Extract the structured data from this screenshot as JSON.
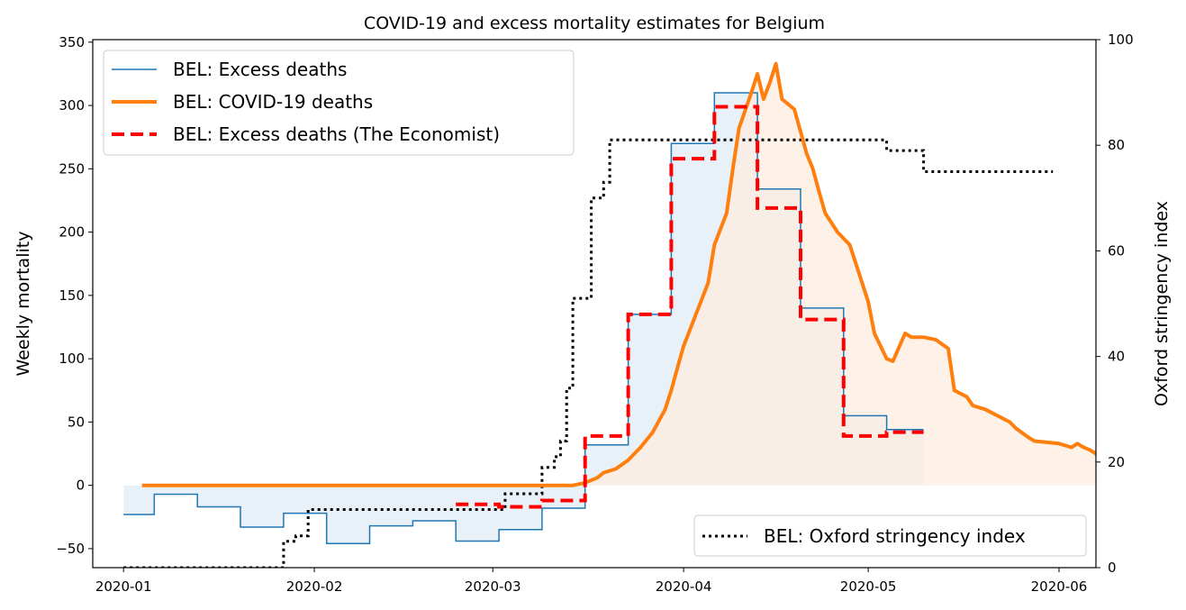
{
  "chart_data": {
    "type": "line",
    "title": "COVID-19 and excess mortality estimates for Belgium",
    "xlabel": "",
    "ylabel": "Weekly mortality",
    "y2label": "Oxford stringency index",
    "x_range": [
      "2019-12-27",
      "2020-06-07"
    ],
    "ylim": [
      -65,
      352
    ],
    "y2lim": [
      0,
      100
    ],
    "x_ticks": [
      "2020-01",
      "2020-02",
      "2020-03",
      "2020-04",
      "2020-05",
      "2020-06"
    ],
    "y_ticks": [
      -50,
      0,
      50,
      100,
      150,
      200,
      250,
      300,
      350
    ],
    "y2_ticks": [
      0,
      20,
      40,
      60,
      80,
      100
    ],
    "legend": {
      "placement": "upper-left",
      "placement_right": "lower-right"
    },
    "colors": {
      "excess": "#1f77b4",
      "excess_fill": "#e8f0f8",
      "covid": "#ff7f0e",
      "covid_fill": "#fdeee0",
      "overlap_fill": "#ebe5e0",
      "economist": "#ff0000",
      "oxford": "#000000"
    },
    "series": [
      {
        "name": "BEL: Excess deaths",
        "axis": "left",
        "style": "step",
        "points": [
          [
            "2020-01-01",
            -23
          ],
          [
            "2020-01-06",
            -7
          ],
          [
            "2020-01-13",
            -17
          ],
          [
            "2020-01-20",
            -33
          ],
          [
            "2020-01-27",
            -22
          ],
          [
            "2020-02-03",
            -46
          ],
          [
            "2020-02-10",
            -32
          ],
          [
            "2020-02-17",
            -28
          ],
          [
            "2020-02-24",
            -44
          ],
          [
            "2020-03-02",
            -35
          ],
          [
            "2020-03-09",
            -18
          ],
          [
            "2020-03-16",
            32
          ],
          [
            "2020-03-23",
            135
          ],
          [
            "2020-03-30",
            270
          ],
          [
            "2020-04-06",
            310
          ],
          [
            "2020-04-13",
            234
          ],
          [
            "2020-04-20",
            140
          ],
          [
            "2020-04-27",
            55
          ],
          [
            "2020-05-04",
            44
          ],
          [
            "2020-05-10",
            44
          ]
        ]
      },
      {
        "name": "BEL: COVID-19 deaths",
        "axis": "left",
        "style": "line",
        "points": [
          [
            "2020-01-04",
            0
          ],
          [
            "2020-03-14",
            0
          ],
          [
            "2020-03-16",
            2
          ],
          [
            "2020-03-18",
            6
          ],
          [
            "2020-03-19",
            10
          ],
          [
            "2020-03-21",
            13
          ],
          [
            "2020-03-23",
            20
          ],
          [
            "2020-03-25",
            30
          ],
          [
            "2020-03-27",
            42
          ],
          [
            "2020-03-29",
            60
          ],
          [
            "2020-03-30",
            75
          ],
          [
            "2020-03-31",
            93
          ],
          [
            "2020-04-01",
            110
          ],
          [
            "2020-04-03",
            135
          ],
          [
            "2020-04-05",
            160
          ],
          [
            "2020-04-06",
            190
          ],
          [
            "2020-04-08",
            215
          ],
          [
            "2020-04-09",
            250
          ],
          [
            "2020-04-10",
            282
          ],
          [
            "2020-04-12",
            310
          ],
          [
            "2020-04-13",
            325
          ],
          [
            "2020-04-14",
            305
          ],
          [
            "2020-04-15",
            318
          ],
          [
            "2020-04-16",
            333
          ],
          [
            "2020-04-17",
            305
          ],
          [
            "2020-04-19",
            297
          ],
          [
            "2020-04-21",
            262
          ],
          [
            "2020-04-22",
            250
          ],
          [
            "2020-04-23",
            232
          ],
          [
            "2020-04-24",
            215
          ],
          [
            "2020-04-26",
            200
          ],
          [
            "2020-04-28",
            190
          ],
          [
            "2020-04-29",
            175
          ],
          [
            "2020-05-01",
            145
          ],
          [
            "2020-05-02",
            120
          ],
          [
            "2020-05-04",
            100
          ],
          [
            "2020-05-05",
            98
          ],
          [
            "2020-05-07",
            120
          ],
          [
            "2020-05-08",
            117
          ],
          [
            "2020-05-10",
            117
          ],
          [
            "2020-05-12",
            115
          ],
          [
            "2020-05-14",
            108
          ],
          [
            "2020-05-15",
            75
          ],
          [
            "2020-05-17",
            70
          ],
          [
            "2020-05-18",
            63
          ],
          [
            "2020-05-20",
            60
          ],
          [
            "2020-05-22",
            55
          ],
          [
            "2020-05-24",
            50
          ],
          [
            "2020-05-25",
            45
          ],
          [
            "2020-05-27",
            38
          ],
          [
            "2020-05-28",
            35
          ],
          [
            "2020-05-30",
            34
          ],
          [
            "2020-06-01",
            33
          ],
          [
            "2020-06-03",
            30
          ],
          [
            "2020-06-04",
            33
          ],
          [
            "2020-06-05",
            30
          ],
          [
            "2020-06-06",
            28
          ],
          [
            "2020-06-07",
            25
          ],
          [
            "2020-06-08",
            24
          ]
        ]
      },
      {
        "name": "BEL: Excess deaths (The Economist)",
        "axis": "left",
        "style": "step",
        "points": [
          [
            "2020-02-24",
            -15
          ],
          [
            "2020-03-02",
            -17
          ],
          [
            "2020-03-09",
            -12
          ],
          [
            "2020-03-16",
            39
          ],
          [
            "2020-03-23",
            135
          ],
          [
            "2020-03-30",
            258
          ],
          [
            "2020-04-06",
            299
          ],
          [
            "2020-04-13",
            219
          ],
          [
            "2020-04-20",
            131
          ],
          [
            "2020-04-27",
            39
          ],
          [
            "2020-05-04",
            42
          ],
          [
            "2020-05-10",
            42
          ]
        ]
      },
      {
        "name": "BEL: Oxford stringency index",
        "axis": "right",
        "style": "step",
        "points": [
          [
            "2020-01-01",
            0
          ],
          [
            "2020-01-27",
            5
          ],
          [
            "2020-01-29",
            6
          ],
          [
            "2020-01-31",
            11
          ],
          [
            "2020-03-03",
            14
          ],
          [
            "2020-03-09",
            19
          ],
          [
            "2020-03-11",
            21
          ],
          [
            "2020-03-12",
            24
          ],
          [
            "2020-03-13",
            34
          ],
          [
            "2020-03-14",
            51
          ],
          [
            "2020-03-17",
            70
          ],
          [
            "2020-03-19",
            73
          ],
          [
            "2020-03-20",
            81
          ],
          [
            "2020-05-04",
            79
          ],
          [
            "2020-05-10",
            75
          ],
          [
            "2020-05-31",
            75
          ]
        ]
      }
    ]
  }
}
